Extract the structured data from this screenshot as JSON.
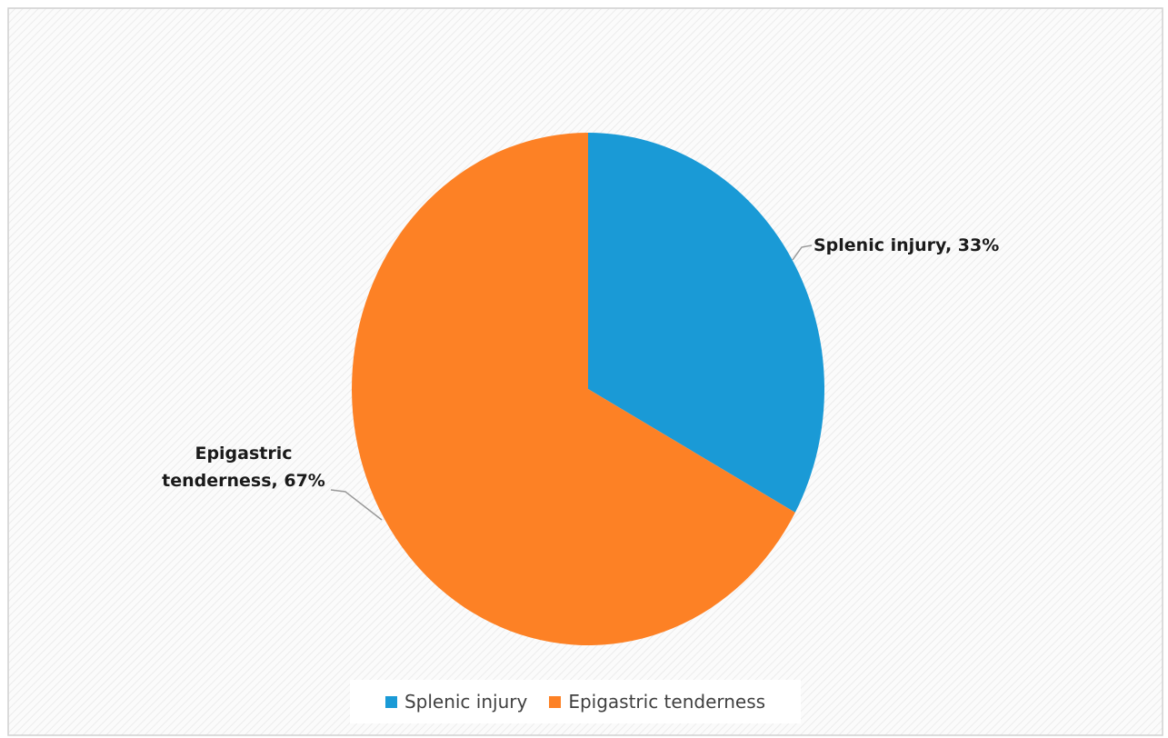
{
  "chart_data": {
    "type": "pie",
    "categories": [
      "Splenic injury",
      "Epigastric tenderness"
    ],
    "values": [
      33,
      67
    ],
    "value_labels": [
      "Splenic injury, 33%",
      "Epigastric tenderness, 67%"
    ],
    "colors": [
      "#1a9ad6",
      "#fd8125"
    ],
    "legend": "bottom"
  }
}
